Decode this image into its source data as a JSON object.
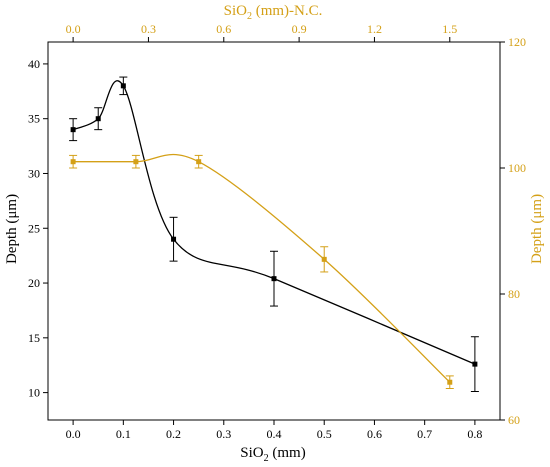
{
  "colors": {
    "black_series": "#000000",
    "orange_series": "#D4A017",
    "frame": "#000000"
  },
  "chart_data": {
    "type": "line",
    "grid": false,
    "legend": "none",
    "axes": {
      "x_bottom": {
        "label_main": "SiO",
        "label_sub": "2",
        "label_tail": " (mm)",
        "range": [
          -0.05,
          0.85
        ],
        "ticks": [
          {
            "value": 0.0,
            "label": "0.0"
          },
          {
            "value": 0.1,
            "label": "0.1"
          },
          {
            "value": 0.2,
            "label": "0.2"
          },
          {
            "value": 0.3,
            "label": "0.3"
          },
          {
            "value": 0.4,
            "label": "0.4"
          },
          {
            "value": 0.5,
            "label": "0.5"
          },
          {
            "value": 0.6,
            "label": "0.6"
          },
          {
            "value": 0.7,
            "label": "0.7"
          },
          {
            "value": 0.8,
            "label": "0.8"
          }
        ]
      },
      "x_top": {
        "label_main": "SiO",
        "label_sub": "2",
        "label_tail": " (mm)-N.C.",
        "range": [
          -0.1,
          1.7
        ],
        "ticks": [
          {
            "value": 0.0,
            "label": "0.0"
          },
          {
            "value": 0.3,
            "label": "0.3"
          },
          {
            "value": 0.6,
            "label": "0.6"
          },
          {
            "value": 0.9,
            "label": "0.9"
          },
          {
            "value": 1.2,
            "label": "1.2"
          },
          {
            "value": 1.5,
            "label": "1.5"
          }
        ]
      },
      "y_left": {
        "label": "Depth (μm)",
        "range": [
          7.5,
          42
        ],
        "ticks": [
          {
            "value": 10,
            "label": "10"
          },
          {
            "value": 15,
            "label": "15"
          },
          {
            "value": 20,
            "label": "20"
          },
          {
            "value": 25,
            "label": "25"
          },
          {
            "value": 30,
            "label": "30"
          },
          {
            "value": 35,
            "label": "35"
          },
          {
            "value": 40,
            "label": "40"
          }
        ]
      },
      "y_right": {
        "label": "Depth (μm)",
        "range": [
          60,
          120
        ],
        "ticks": [
          {
            "value": 60,
            "label": "60"
          },
          {
            "value": 80,
            "label": "80"
          },
          {
            "value": 100,
            "label": "100"
          },
          {
            "value": 120,
            "label": "120"
          }
        ]
      }
    },
    "series": [
      {
        "axis": "bottom-left",
        "color": "#000000",
        "marker": "square",
        "smooth": true,
        "points": [
          {
            "x": 0.0,
            "y": 34.0,
            "err": 1.0
          },
          {
            "x": 0.05,
            "y": 35.0,
            "err": 1.0
          },
          {
            "x": 0.1,
            "y": 38.0,
            "err": 0.8
          },
          {
            "x": 0.2,
            "y": 24.0,
            "err": 2.0
          },
          {
            "x": 0.4,
            "y": 20.4,
            "err": 2.5
          },
          {
            "x": 0.8,
            "y": 12.6,
            "err": 2.5
          }
        ]
      },
      {
        "axis": "top-right",
        "color": "#D4A017",
        "marker": "square",
        "smooth": true,
        "points": [
          {
            "x": 0.0,
            "y": 101.0,
            "err": 1.0
          },
          {
            "x": 0.25,
            "y": 101.0,
            "err": 1.0
          },
          {
            "x": 0.5,
            "y": 101.0,
            "err": 1.0
          },
          {
            "x": 1.0,
            "y": 85.5,
            "err": 2.0
          },
          {
            "x": 1.5,
            "y": 66.0,
            "err": 1.0
          }
        ]
      }
    ]
  }
}
